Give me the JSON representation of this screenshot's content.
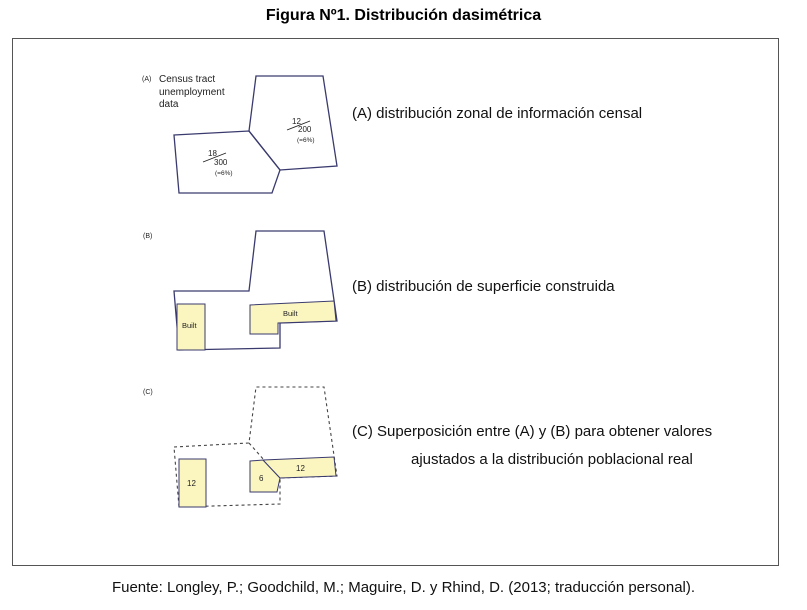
{
  "figure_title": "Figura Nº1. Distribución dasimétrica",
  "panel_a": {
    "letter": "(A)",
    "label_line1": "Census tract",
    "label_line2": "unemployment",
    "label_line3": "data",
    "tract_left": {
      "numerator": "18",
      "denominator": "300",
      "percent": "(=6%)"
    },
    "tract_right": {
      "numerator": "12",
      "denominator": "200",
      "percent": "(=6%)"
    },
    "caption": "(A) distribución zonal de información censal"
  },
  "panel_b": {
    "letter": "(B)",
    "built_left": "Built",
    "built_right": "Built",
    "caption": "(B) distribución de superficie construida"
  },
  "panel_c": {
    "letter": "(C)",
    "value_left": "12",
    "value_mid": "6",
    "value_right": "12",
    "caption_line1": "(C) Superposición entre (A) y (B) para obtener valores",
    "caption_line2": "ajustados a la distribución poblacional real"
  },
  "source": "Fuente: Longley, P.; Goodchild, M.; Maguire, D. y Rhind, D. (2013; traducción personal).",
  "colors": {
    "outline": "#3a3a6e",
    "built_fill": "#fbf6c0",
    "built_stroke": "#3a3a6e",
    "frame": "#555555"
  }
}
